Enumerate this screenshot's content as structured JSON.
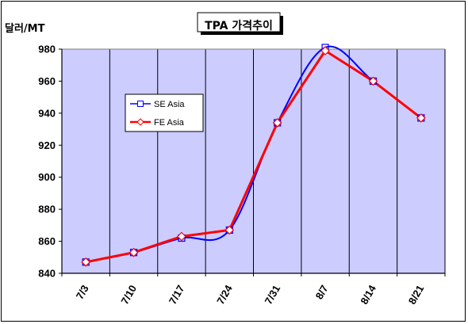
{
  "chart_data": {
    "type": "line",
    "title": "TPA 가격추이",
    "ylabel": "달러/MT",
    "xlabel": "",
    "categories": [
      "7/3",
      "7/10",
      "7/17",
      "7/24",
      "7/31",
      "8/7",
      "8/14",
      "8/21"
    ],
    "ylim": [
      840,
      980
    ],
    "yticks": [
      840,
      860,
      880,
      900,
      920,
      940,
      960,
      980
    ],
    "grid": "vertical",
    "legend": "center-left",
    "plot_background": "#ccccff",
    "series": [
      {
        "name": "SE Asia",
        "values": [
          847,
          853,
          862,
          867,
          934,
          981,
          960,
          937
        ],
        "color": "#0000ff",
        "marker": "square"
      },
      {
        "name": "FE Asia",
        "values": [
          847,
          853,
          863,
          867,
          934,
          979,
          960,
          937
        ],
        "color": "#ff0000",
        "marker": "diamond"
      }
    ]
  }
}
